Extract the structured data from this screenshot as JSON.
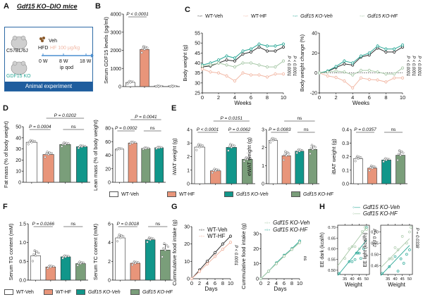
{
  "colors": {
    "wt_veh": "#ffffff",
    "wt_hf": "#e8957a",
    "ko_veh": "#11968a",
    "ko_hf": "#7a9e7a",
    "wt_veh_line": "#333333",
    "wt_hf_line": "#f2b8a5",
    "ko_veh_line": "#2aa897",
    "ko_hf_line": "#a9c9a9",
    "schematic_blue": "#1f5d9e"
  },
  "panels": {
    "A": {
      "label": "A",
      "title": "Gdf15 KO–DIO mice",
      "strain1": "C57BL/6J",
      "strain2": "GDF15 KO",
      "diet": "HFD",
      "veh": "Veh",
      "hf": "HF 100 μg/kg",
      "t0": "0 W",
      "t8": "8 W",
      "t18": "18 W",
      "route": "ip qod",
      "footer": "Animal experiment"
    },
    "B": {
      "label": "B"
    },
    "C": {
      "label": "C"
    },
    "D": {
      "label": "D"
    },
    "E": {
      "label": "E"
    },
    "F": {
      "label": "F"
    },
    "G": {
      "label": "G"
    },
    "H": {
      "label": "H"
    }
  },
  "legend_groups": [
    "WT-Veh",
    "WT-HF",
    "Gdf15 KO-Veh",
    "Gdf15 KO-HF"
  ],
  "chart_data": [
    {
      "id": "B",
      "type": "bar",
      "ylabel": "Serum GDF15 levels (pg/ml)",
      "ylim": [
        0,
        4000
      ],
      "yticks": [
        0,
        1000,
        2000,
        3000,
        4000
      ],
      "categories": [
        "WT-Veh",
        "WT-HF",
        "Gdf15 KO-Veh",
        "Gdf15 KO-HF"
      ],
      "values": [
        230,
        2050,
        0,
        0
      ],
      "errors": [
        60,
        150,
        0,
        0
      ],
      "annotations": [
        {
          "text": "P < 0.0001",
          "between": [
            0,
            1
          ]
        }
      ]
    },
    {
      "id": "C-left",
      "type": "line",
      "xlabel": "Weeks",
      "ylabel": "Body weight (g)",
      "xlim": [
        0,
        10
      ],
      "ylim": [
        25,
        55
      ],
      "xticks": [
        0,
        2,
        4,
        6,
        8,
        10
      ],
      "yticks": [
        25,
        30,
        35,
        40,
        45,
        50,
        55
      ],
      "x": [
        0,
        1,
        2,
        3,
        4,
        5,
        6,
        7,
        8,
        9,
        10
      ],
      "series": [
        {
          "name": "WT-Veh",
          "values": [
            38,
            38.5,
            40,
            41.5,
            41,
            44.5,
            45.5,
            48,
            46,
            46,
            48
          ]
        },
        {
          "name": "WT-HF",
          "values": [
            37,
            35.5,
            35,
            33.5,
            31,
            35,
            34,
            34,
            33,
            34.5,
            34.5
          ]
        },
        {
          "name": "Gdf15 KO-Veh",
          "values": [
            39,
            40,
            41.5,
            43.5,
            42.5,
            46,
            47,
            49.5,
            48.5,
            48.5,
            49.5
          ]
        },
        {
          "name": "Gdf15 KO-HF",
          "values": [
            38.5,
            39,
            40,
            39,
            38,
            40,
            40,
            39,
            38,
            38,
            41
          ]
        }
      ],
      "annotations": [
        "P < 0.0001",
        "P < 0.0001"
      ]
    },
    {
      "id": "C-right",
      "type": "line",
      "xlabel": "Weeks",
      "ylabel": "Body weight change (%)",
      "xlim": [
        0,
        10
      ],
      "ylim": [
        -20,
        40
      ],
      "xticks": [
        0,
        2,
        4,
        6,
        8,
        10
      ],
      "yticks": [
        -20,
        0,
        20,
        40
      ],
      "x": [
        0,
        1,
        2,
        3,
        4,
        5,
        6,
        7,
        8,
        9,
        10
      ],
      "series": [
        {
          "name": "WT-Veh",
          "values": [
            0,
            1.5,
            5.5,
            9,
            8,
            16,
            18,
            25,
            21,
            21,
            26
          ]
        },
        {
          "name": "WT-HF",
          "values": [
            0,
            -3,
            -4.5,
            -8,
            -15,
            -5,
            -6.5,
            -7,
            -9,
            -5,
            -5
          ]
        },
        {
          "name": "Gdf15 KO-Veh",
          "values": [
            0,
            2,
            6.5,
            12,
            10,
            17,
            20,
            27,
            24,
            24,
            28
          ]
        },
        {
          "name": "Gdf15 KO-HF",
          "values": [
            0,
            1,
            2,
            1,
            -2,
            2.5,
            2.5,
            1,
            -1,
            -1,
            5
          ]
        }
      ],
      "annotations": [
        "P < 0.0001",
        "P < 0.0001",
        "P < 0.0001"
      ]
    },
    {
      "id": "D-left",
      "type": "bar",
      "ylabel": "Fat mass (% of body weight)",
      "ylim": [
        0,
        50
      ],
      "yticks": [
        0,
        10,
        20,
        30,
        40,
        50
      ],
      "categories": [
        "WT-Veh",
        "WT-HF",
        "Gdf15 KO-HF",
        "Gdf15 KO-Veh"
      ],
      "values": [
        36,
        25,
        34,
        32
      ],
      "errors": [
        1.5,
        2,
        1.5,
        1
      ],
      "annotations": [
        {
          "text": "P = 0.0004",
          "between": [
            0,
            1
          ]
        },
        {
          "text": "P = 0.0202",
          "between": [
            1,
            3
          ]
        },
        {
          "text": "ns",
          "between": [
            2,
            3
          ]
        }
      ]
    },
    {
      "id": "D-right",
      "type": "bar",
      "ylabel": "Lean mass (% of body weight)",
      "ylim": [
        0,
        80
      ],
      "yticks": [
        0,
        20,
        40,
        60,
        80
      ],
      "categories": [
        "WT-Veh",
        "WT-HF",
        "Gdf15 KO-HF",
        "Gdf15 KO-Veh"
      ],
      "values": [
        49,
        58,
        50,
        51
      ],
      "errors": [
        1,
        1.5,
        1,
        1
      ],
      "annotations": [
        {
          "text": "P = 0.0002",
          "between": [
            0,
            1
          ]
        },
        {
          "text": "P = 0.0041",
          "between": [
            1,
            3
          ]
        },
        {
          "text": "ns",
          "between": [
            2,
            3
          ]
        }
      ]
    },
    {
      "id": "E-iWAT",
      "type": "bar",
      "ylabel": "iWAT weight (g)",
      "ylim": [
        0,
        4
      ],
      "yticks": [
        0,
        1,
        2,
        3,
        4
      ],
      "categories": [
        "WT-Veh",
        "WT-HF",
        "Gdf15 KO-Veh",
        "Gdf15 KO-HF"
      ],
      "values": [
        2.7,
        0.95,
        2.68,
        1.8
      ],
      "errors": [
        0.18,
        0.12,
        0.2,
        0.12
      ],
      "annotations": [
        {
          "text": "P < 0.0001",
          "between": [
            0,
            1
          ]
        },
        {
          "text": "P = 0.0062",
          "between": [
            2,
            3
          ]
        },
        {
          "text": "P = 0.0151",
          "between": [
            1,
            3
          ]
        }
      ]
    },
    {
      "id": "E-eWAT",
      "type": "bar",
      "ylabel": "eWAT weight (g)",
      "ylim": [
        0,
        3
      ],
      "yticks": [
        0,
        1,
        2,
        3
      ],
      "categories": [
        "WT-Veh",
        "WT-HF",
        "Gdf15 KO-Veh",
        "Gdf15 KO-HF"
      ],
      "values": [
        2.4,
        1.55,
        1.8,
        1.9
      ],
      "errors": [
        0.1,
        0.2,
        0.08,
        0.2
      ],
      "annotations": [
        {
          "text": "P = 0.0083",
          "between": [
            0,
            1
          ]
        },
        {
          "text": "ns",
          "between": [
            2,
            3
          ]
        },
        {
          "text": "ns",
          "between": [
            1,
            3
          ]
        }
      ]
    },
    {
      "id": "E-iBAT",
      "type": "bar",
      "ylabel": "iBAT weight (g)",
      "ylim": [
        0,
        0.4
      ],
      "yticks": [
        0.0,
        0.1,
        0.2,
        0.3,
        0.4
      ],
      "categories": [
        "WT-Veh",
        "WT-HF",
        "Gdf15 KO-Veh",
        "Gdf15 KO-HF"
      ],
      "values": [
        0.185,
        0.115,
        0.175,
        0.21
      ],
      "errors": [
        0.015,
        0.015,
        0.01,
        0.03
      ],
      "annotations": [
        {
          "text": "P = 0.0357",
          "between": [
            0,
            1
          ]
        },
        {
          "text": "ns",
          "between": [
            2,
            3
          ]
        }
      ]
    },
    {
      "id": "F-TG",
      "type": "bar",
      "ylabel": "Serum TG content (mM)",
      "ylim": [
        0,
        1.5
      ],
      "yticks": [
        0.0,
        0.5,
        1.0,
        1.5
      ],
      "categories": [
        "WT-Veh",
        "WT-HF",
        "Gdf15 KO-Veh",
        "Gdf15 KO-HF"
      ],
      "values": [
        0.65,
        0.35,
        0.62,
        0.44
      ],
      "errors": [
        0.12,
        0.03,
        0.03,
        0.04
      ],
      "annotations": [
        {
          "text": "P = 0.0166",
          "between": [
            0,
            1
          ]
        },
        {
          "text": "ns",
          "between": [
            2,
            3
          ]
        }
      ]
    },
    {
      "id": "F-TC",
      "type": "bar",
      "ylabel": "Serum TC content (mM)",
      "ylim": [
        0,
        6
      ],
      "yticks": [
        0,
        2,
        4,
        6
      ],
      "categories": [
        "WT-Veh",
        "WT-HF",
        "Gdf15 KO-Veh",
        "Gdf15 KO-HF"
      ],
      "values": [
        4.5,
        1.8,
        4.3,
        3.2
      ],
      "errors": [
        0.3,
        0.15,
        0.2,
        0.6
      ],
      "annotations": [
        {
          "text": "P = 0.0018",
          "between": [
            0,
            1
          ]
        },
        {
          "text": "ns",
          "between": [
            2,
            3
          ]
        }
      ]
    },
    {
      "id": "G-left",
      "type": "line",
      "xlabel": "Days",
      "ylabel": "Cummulative food intake (g)",
      "xlim": [
        0,
        10
      ],
      "ylim": [
        0,
        30
      ],
      "xticks": [
        0,
        2,
        4,
        6,
        8,
        10
      ],
      "yticks": [
        0,
        10,
        20,
        30
      ],
      "x": [
        0,
        2,
        4,
        6,
        8,
        10
      ],
      "series": [
        {
          "name": "WT-Veh",
          "values": [
            0,
            5,
            10,
            15,
            20,
            24.5
          ]
        },
        {
          "name": "WT-HF",
          "values": [
            0,
            4.2,
            8.5,
            12.8,
            17,
            21
          ]
        }
      ],
      "annotations": [
        "P < 0.0001"
      ]
    },
    {
      "id": "G-right",
      "type": "line",
      "xlabel": "Days",
      "ylabel": "Cummulative food intake (g)",
      "xlim": [
        0,
        10
      ],
      "ylim": [
        0,
        30
      ],
      "xticks": [
        0,
        2,
        4,
        6,
        8,
        10
      ],
      "yticks": [
        0,
        10,
        20,
        30
      ],
      "x": [
        0,
        2,
        4,
        6,
        8,
        10
      ],
      "series": [
        {
          "name": "Gdf15 KO-Veh",
          "values": [
            0,
            5,
            10.5,
            15.5,
            20,
            25
          ]
        },
        {
          "name": "Gdf15 KO-HF",
          "values": [
            0,
            5,
            10,
            15,
            19.5,
            24
          ]
        }
      ],
      "annotations": [
        "ns"
      ]
    },
    {
      "id": "H-dark",
      "type": "scatter",
      "xlabel": "Weight",
      "ylabel": "EE dark (kcal/h)",
      "xlim": [
        30,
        52
      ],
      "ylim": [
        0.48,
        0.71
      ],
      "xticks": [
        35,
        40,
        45,
        50
      ],
      "yticks": [
        0.5,
        0.55,
        0.6,
        0.65,
        0.7
      ],
      "series": [
        {
          "name": "Gdf15 KO-Veh",
          "points": [
            [
              31,
              0.485
            ],
            [
              38,
              0.54
            ],
            [
              40,
              0.54
            ],
            [
              42,
              0.55
            ],
            [
              43,
              0.58
            ],
            [
              44,
              0.58
            ],
            [
              45,
              0.58
            ],
            [
              46,
              0.555
            ],
            [
              48,
              0.6
            ],
            [
              50,
              0.7
            ]
          ],
          "fit": [
            [
              30,
              0.475
            ],
            [
              50,
              0.64
            ]
          ]
        },
        {
          "name": "Gdf15 KO-HF",
          "points": [
            [
              35,
              0.555
            ],
            [
              38,
              0.6
            ],
            [
              40,
              0.61
            ],
            [
              42,
              0.61
            ],
            [
              45,
              0.6
            ],
            [
              47,
              0.68
            ],
            [
              49,
              0.7
            ],
            [
              50,
              0.69
            ]
          ],
          "fit": [
            [
              30,
              0.52
            ],
            [
              50,
              0.7
            ]
          ]
        }
      ],
      "annotations": [
        "P = 0.012"
      ]
    },
    {
      "id": "H-light",
      "type": "scatter",
      "xlabel": "Weight",
      "ylabel": "EE light (kcal/h)",
      "xlim": [
        30,
        52
      ],
      "ylim": [
        0.41,
        0.63
      ],
      "xticks": [
        35,
        40,
        45,
        50
      ],
      "yticks": [
        0.45,
        0.5,
        0.55,
        0.6
      ],
      "series": [
        {
          "name": "Gdf15 KO-Veh",
          "points": [
            [
              31,
              0.415
            ],
            [
              36,
              0.445
            ],
            [
              40,
              0.49
            ],
            [
              42,
              0.425
            ],
            [
              44,
              0.48
            ],
            [
              46,
              0.46
            ],
            [
              48,
              0.5
            ],
            [
              50,
              0.52
            ]
          ],
          "fit": [
            [
              30,
              0.405
            ],
            [
              50,
              0.54
            ]
          ]
        },
        {
          "name": "Gdf15 KO-HF",
          "points": [
            [
              36,
              0.48
            ],
            [
              38,
              0.48
            ],
            [
              40,
              0.53
            ],
            [
              42,
              0.52
            ],
            [
              45,
              0.58
            ],
            [
              48,
              0.55
            ],
            [
              50,
              0.6
            ],
            [
              51,
              0.62
            ]
          ],
          "fit": [
            [
              30,
              0.44
            ],
            [
              50,
              0.57
            ]
          ]
        }
      ],
      "annotations": [
        "P = 0.0338"
      ]
    }
  ]
}
